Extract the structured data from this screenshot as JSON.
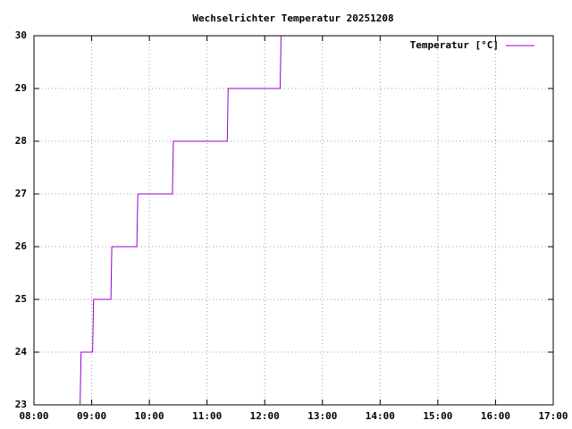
{
  "chart_data": {
    "type": "line",
    "title": "Wechselrichter Temperatur 20251208",
    "x": [
      "08:48",
      "08:49",
      "09:01",
      "09:02",
      "09:20",
      "09:21",
      "09:47",
      "09:48",
      "10:24",
      "10:25",
      "11:21",
      "11:22",
      "12:16",
      "12:17"
    ],
    "series": [
      {
        "name": "Temperatur [°C]",
        "color": "#9400d3",
        "values": [
          23,
          24,
          24,
          25,
          25,
          26,
          26,
          27,
          27,
          28,
          28,
          29,
          29,
          30
        ]
      }
    ],
    "xlim": [
      "08:00",
      "17:00"
    ],
    "xticks": [
      "08:00",
      "09:00",
      "10:00",
      "11:00",
      "12:00",
      "13:00",
      "14:00",
      "15:00",
      "16:00",
      "17:00"
    ],
    "ylim": [
      23,
      30
    ],
    "yticks": [
      23,
      24,
      25,
      26,
      27,
      28,
      29,
      30
    ],
    "grid": true,
    "legend": "top-right"
  }
}
